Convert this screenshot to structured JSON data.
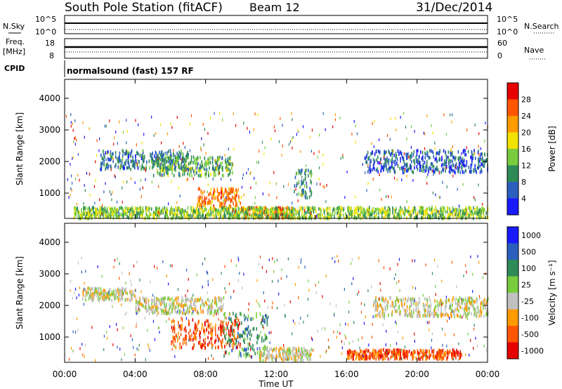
{
  "header": {
    "station": "South Pole Station (fitACF)",
    "beam": "Beam 12",
    "date": "31/Dec/2014"
  },
  "side_labels": {
    "nsky": "N.Sky",
    "nsearch": "N.Search",
    "freq": "Freq.",
    "freq_unit": "[MHz]",
    "nave": "Nave",
    "cpid": "CPID"
  },
  "noise_axis": {
    "left_top": "10^5",
    "left_bottom": "10^0",
    "right_top": "10^5",
    "right_bottom": "10^0"
  },
  "freq_axis": {
    "left_top": "18",
    "left_bottom": "8",
    "right_top": "60",
    "right_bottom": "0"
  },
  "cpid_text": "normalsound (fast) 157 RF",
  "x_axis": {
    "label": "Time UT",
    "ticks": [
      "00:00",
      "04:00",
      "08:00",
      "12:00",
      "16:00",
      "20:00",
      "00:00"
    ]
  },
  "colors": {
    "power": [
      "#1a1aff",
      "#2b5ebd",
      "#2e8b57",
      "#7acc3f",
      "#f2e200",
      "#ff9a00",
      "#ff5500",
      "#e60000"
    ],
    "velocity": [
      "#e60000",
      "#ff5500",
      "#ff9a00",
      "#c0c0c0",
      "#7acc3f",
      "#2e8b57",
      "#2b5ebd",
      "#1a1aff"
    ]
  },
  "chart_data": [
    {
      "type": "heatmap",
      "panel": "power",
      "ylabel": "Slant Range [km]",
      "y_ticks": [
        "1000",
        "2000",
        "3000",
        "4000"
      ],
      "ylim": [
        200,
        4600
      ],
      "xlim": [
        "00:00",
        "24:00"
      ],
      "colorbar_label": "Power [dB]",
      "colorbar_ticks": [
        "4",
        "8",
        "12",
        "16",
        "20",
        "24",
        "28"
      ],
      "colorbar_range": [
        0,
        32
      ],
      "scatter_regions": [
        {
          "t_start": 2.0,
          "t_end": 7.0,
          "range_start": 1800,
          "range_end": 2400,
          "value": 8
        },
        {
          "t_start": 5.0,
          "t_end": 9.5,
          "range_start": 1600,
          "range_end": 2200,
          "value": 12
        },
        {
          "t_start": 7.5,
          "t_end": 10.0,
          "range_start": 600,
          "range_end": 1200,
          "value": 24
        },
        {
          "t_start": 10.0,
          "t_end": 13.0,
          "range_start": 250,
          "range_end": 600,
          "value": 24
        },
        {
          "t_start": 13.0,
          "t_end": 14.0,
          "range_start": 900,
          "range_end": 1800,
          "value": 10
        },
        {
          "t_start": 17.0,
          "t_end": 24.0,
          "range_start": 1700,
          "range_end": 2400,
          "value": 6
        },
        {
          "t_start": 0.5,
          "t_end": 24.0,
          "range_start": 250,
          "range_end": 600,
          "value": 14
        }
      ]
    },
    {
      "type": "heatmap",
      "panel": "velocity",
      "ylabel": "Slant Range [km]",
      "y_ticks": [
        "1000",
        "2000",
        "3000",
        "4000"
      ],
      "ylim": [
        200,
        4600
      ],
      "xlim": [
        "00:00",
        "24:00"
      ],
      "colorbar_label": "Velocity [m s⁻¹]",
      "colorbar_ticks": [
        "-1000",
        "-500",
        "-100",
        "-25",
        "25",
        "100",
        "500",
        "1000"
      ],
      "scatter_regions": [
        {
          "t_start": 1.0,
          "t_end": 4.0,
          "range_start": 2200,
          "range_end": 2600,
          "value": 0
        },
        {
          "t_start": 4.0,
          "t_end": 9.0,
          "range_start": 1800,
          "range_end": 2300,
          "value": 0
        },
        {
          "t_start": 6.0,
          "t_end": 10.0,
          "range_start": 700,
          "range_end": 1600,
          "value": -200
        },
        {
          "t_start": 9.0,
          "t_end": 11.5,
          "range_start": 400,
          "range_end": 1800,
          "value": 150
        },
        {
          "t_start": 11.0,
          "t_end": 14.0,
          "range_start": 300,
          "range_end": 700,
          "value": 0
        },
        {
          "t_start": 17.5,
          "t_end": 24.0,
          "range_start": 1700,
          "range_end": 2300,
          "value": 0
        },
        {
          "t_start": 16.0,
          "t_end": 22.5,
          "range_start": 350,
          "range_end": 650,
          "value": -200
        }
      ]
    }
  ]
}
